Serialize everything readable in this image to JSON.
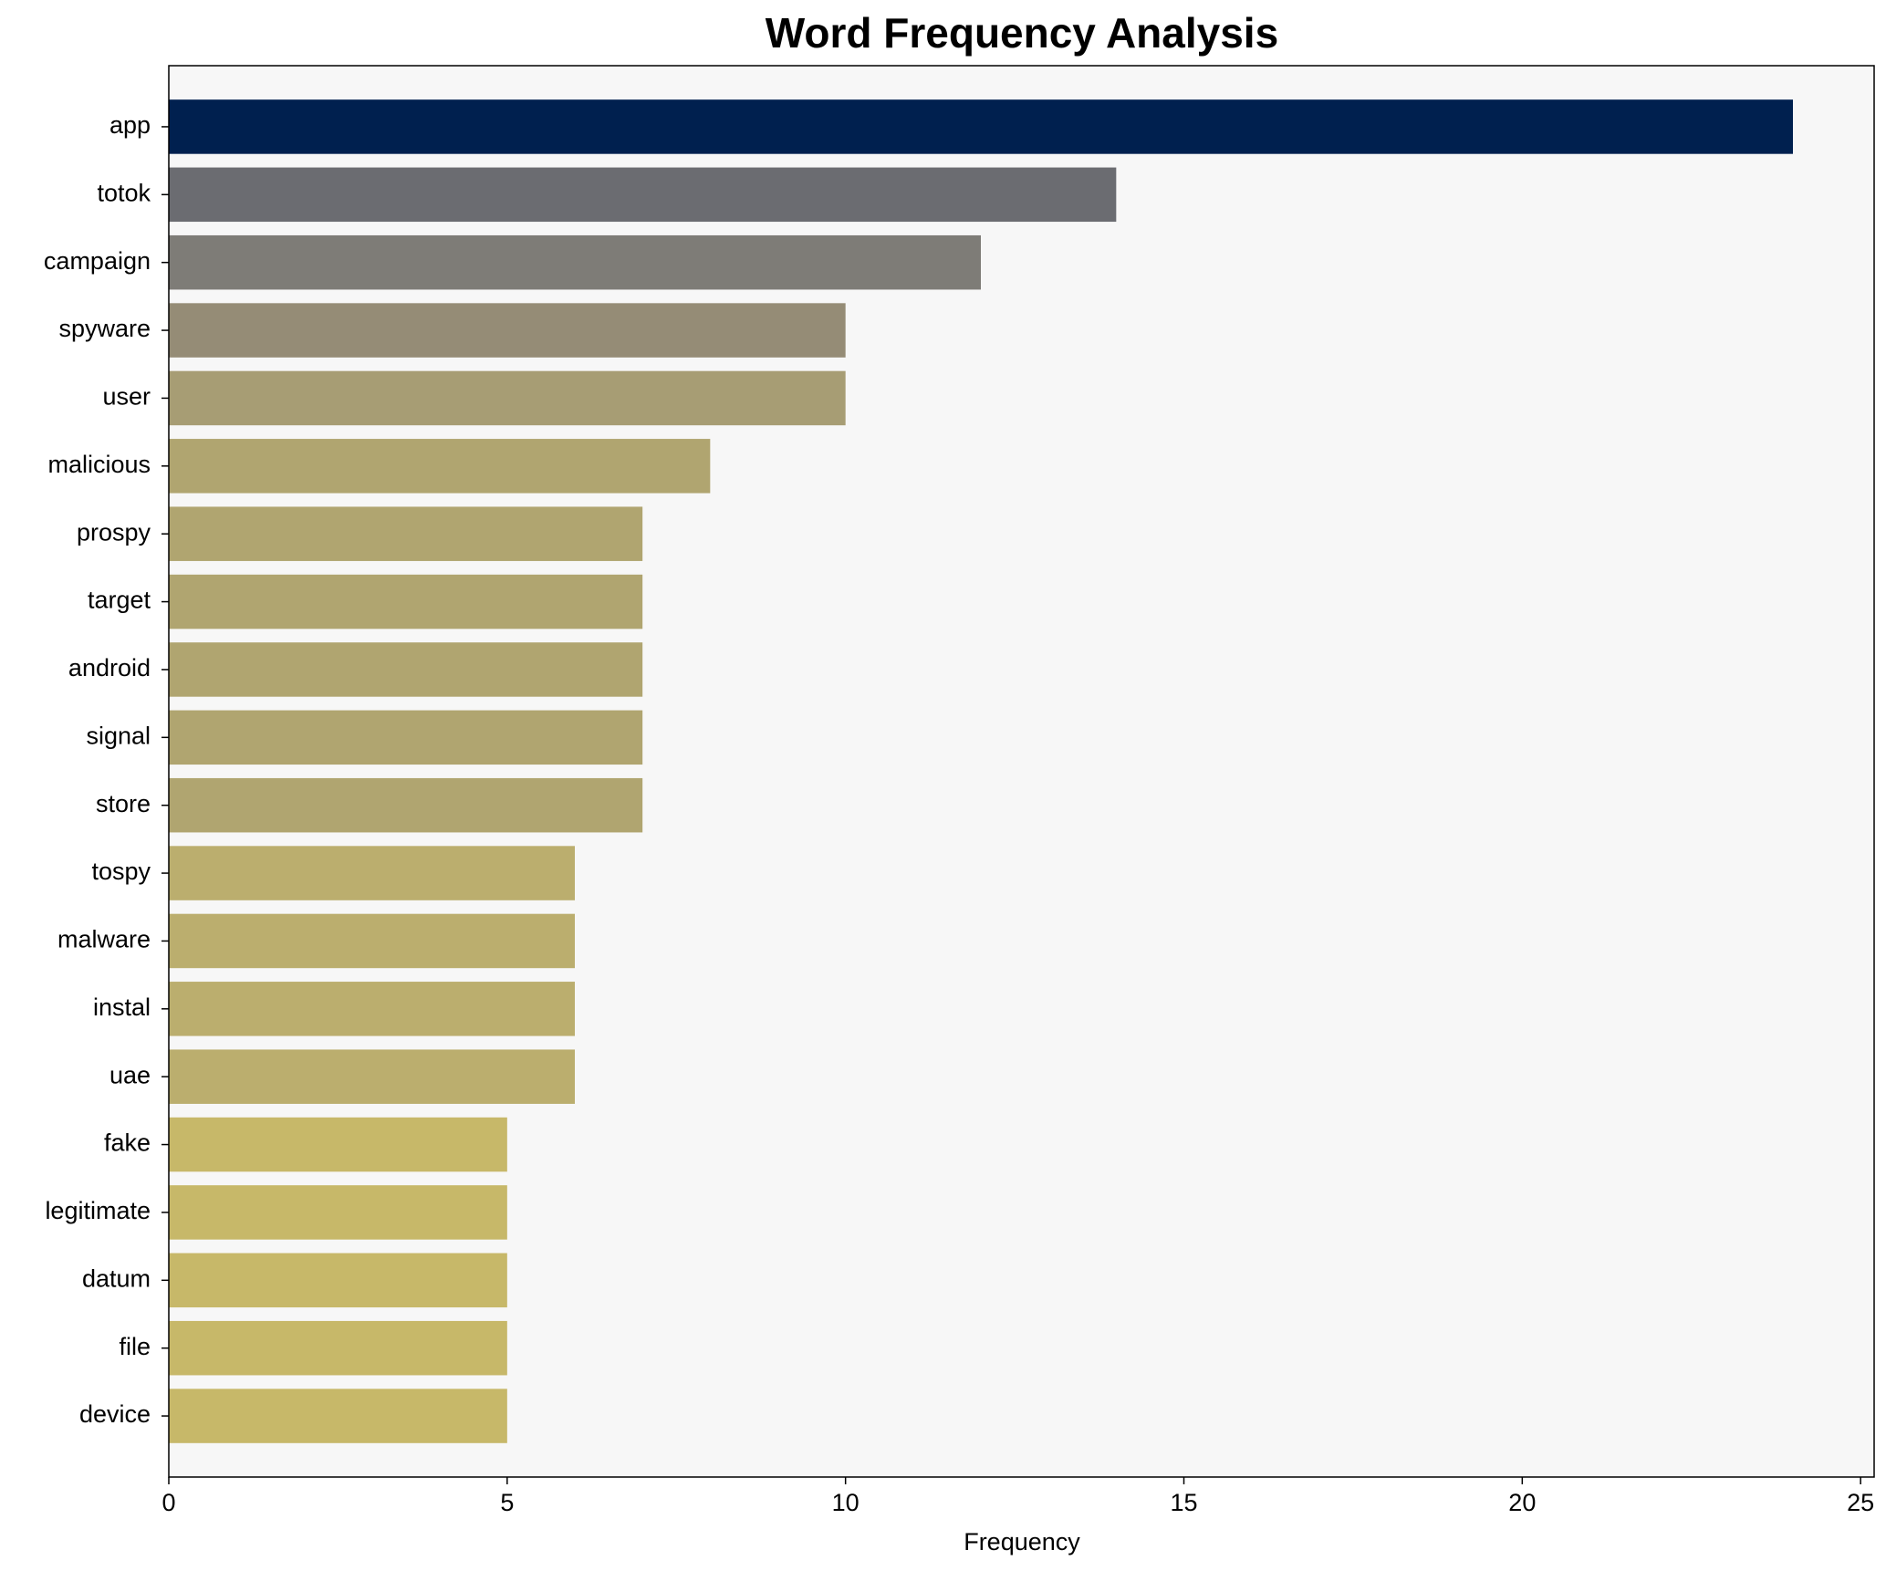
{
  "chart_data": {
    "type": "barh",
    "title": "Word Frequency Analysis",
    "xlabel": "Frequency",
    "categories": [
      "app",
      "totok",
      "campaign",
      "spyware",
      "user",
      "malicious",
      "prospy",
      "target",
      "android",
      "signal",
      "store",
      "tospy",
      "malware",
      "instal",
      "uae",
      "fake",
      "legitimate",
      "datum",
      "file",
      "device"
    ],
    "values": [
      24,
      14,
      12,
      10,
      10,
      8,
      7,
      7,
      7,
      7,
      7,
      6,
      6,
      6,
      6,
      5,
      5,
      5,
      5,
      5
    ],
    "colors": [
      "#00204f",
      "#6b6c71",
      "#7e7c77",
      "#958c76",
      "#a79d74",
      "#b0a570",
      "#b0a570",
      "#b0a570",
      "#b0a570",
      "#b0a570",
      "#b0a570",
      "#bbae6e",
      "#bbae6e",
      "#bbae6e",
      "#bbae6e",
      "#c7b869",
      "#c7b869",
      "#c7b869",
      "#c7b869",
      "#c7b869"
    ],
    "xlim": [
      0,
      25.2
    ],
    "xticks": [
      0,
      5,
      10,
      15,
      20,
      25
    ],
    "grid": false
  }
}
